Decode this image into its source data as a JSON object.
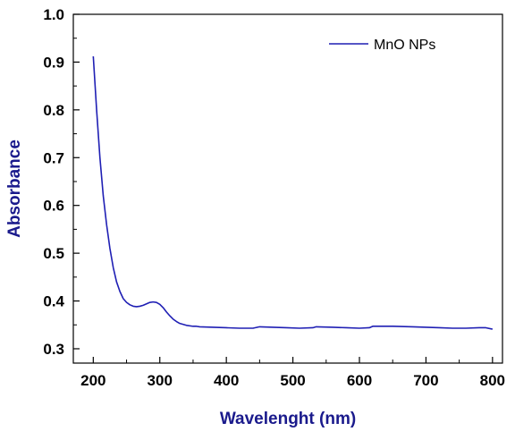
{
  "chart_data": {
    "type": "line",
    "title": "",
    "xlabel": "Wavelenght (nm)",
    "ylabel": "Absorbance",
    "xlim": [
      170,
      815
    ],
    "ylim": [
      0.27,
      1.0
    ],
    "x_ticks": [
      200,
      300,
      400,
      500,
      600,
      700,
      800
    ],
    "x_tick_labels": [
      "200",
      "300",
      "400",
      "500",
      "600",
      "700",
      "800"
    ],
    "y_ticks": [
      0.3,
      0.4,
      0.5,
      0.6,
      0.7,
      0.8,
      0.9,
      1.0
    ],
    "y_tick_labels": [
      "0.3",
      "0.4",
      "0.5",
      "0.6",
      "0.7",
      "0.8",
      "0.9",
      "1.0"
    ],
    "grid": false,
    "legend_position": "top-right",
    "series": [
      {
        "name": "MnO NPs",
        "color": "#1f1fb4",
        "points": [
          [
            200,
            0.912
          ],
          [
            205,
            0.8
          ],
          [
            210,
            0.7
          ],
          [
            215,
            0.62
          ],
          [
            220,
            0.56
          ],
          [
            225,
            0.51
          ],
          [
            230,
            0.47
          ],
          [
            235,
            0.44
          ],
          [
            240,
            0.42
          ],
          [
            245,
            0.405
          ],
          [
            250,
            0.397
          ],
          [
            255,
            0.392
          ],
          [
            260,
            0.389
          ],
          [
            265,
            0.388
          ],
          [
            270,
            0.389
          ],
          [
            275,
            0.391
          ],
          [
            280,
            0.394
          ],
          [
            285,
            0.397
          ],
          [
            290,
            0.398
          ],
          [
            295,
            0.397
          ],
          [
            300,
            0.393
          ],
          [
            305,
            0.386
          ],
          [
            310,
            0.377
          ],
          [
            315,
            0.369
          ],
          [
            320,
            0.362
          ],
          [
            325,
            0.357
          ],
          [
            330,
            0.353
          ],
          [
            340,
            0.349
          ],
          [
            350,
            0.347
          ],
          [
            355,
            0.347
          ],
          [
            360,
            0.346
          ],
          [
            380,
            0.345
          ],
          [
            400,
            0.344
          ],
          [
            420,
            0.343
          ],
          [
            440,
            0.343
          ],
          [
            450,
            0.346
          ],
          [
            470,
            0.345
          ],
          [
            490,
            0.344
          ],
          [
            510,
            0.343
          ],
          [
            530,
            0.344
          ],
          [
            535,
            0.346
          ],
          [
            560,
            0.345
          ],
          [
            580,
            0.344
          ],
          [
            600,
            0.343
          ],
          [
            615,
            0.344
          ],
          [
            620,
            0.347
          ],
          [
            650,
            0.347
          ],
          [
            680,
            0.346
          ],
          [
            700,
            0.345
          ],
          [
            720,
            0.344
          ],
          [
            740,
            0.343
          ],
          [
            760,
            0.343
          ],
          [
            780,
            0.344
          ],
          [
            790,
            0.344
          ],
          [
            800,
            0.341
          ]
        ]
      }
    ]
  }
}
